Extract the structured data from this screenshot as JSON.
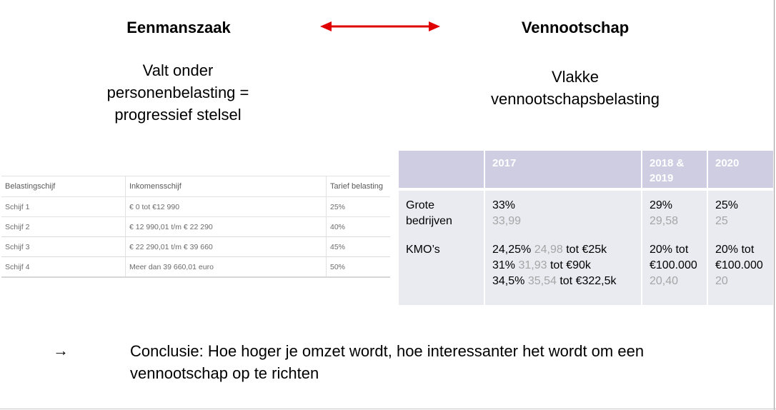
{
  "left": {
    "heading": "Eenmanszaak",
    "description_lines": [
      "Valt onder",
      "personenbelasting =",
      "progressief stelsel"
    ]
  },
  "right": {
    "heading": "Vennootschap",
    "description_lines": [
      "Vlakke",
      "vennootschapsbelasting"
    ]
  },
  "arrow": {
    "color": "#e00000"
  },
  "tax_table": {
    "headers": [
      "Belastingschijf",
      "Inkomensschijf",
      "Tarief belasting"
    ],
    "rows": [
      [
        "Schijf 1",
        "€ 0 tot €12 990",
        "25%"
      ],
      [
        "Schijf 2",
        "€ 12 990,01 t/m € 22 290",
        "40%"
      ],
      [
        "Schijf 3",
        "€ 22 290,01 t/m € 39 660",
        "45%"
      ],
      [
        "Schijf 4",
        "Meer dan 39 660,01 euro",
        "50%"
      ]
    ]
  },
  "vpb_table": {
    "headers": [
      "",
      "2017",
      "2018 &",
      "2019",
      "2020"
    ],
    "grote": {
      "label_lines": [
        "Grote",
        "bedrijven"
      ],
      "y2017": "33%",
      "y2017_grey": "33,99",
      "y2018": "29%",
      "y2018_grey": "29,58",
      "y2020": "25%",
      "y2020_grey": "25"
    },
    "kmo": {
      "label": "KMO’s",
      "line1": {
        "rate": "24,25%",
        "grey": "24,98",
        "rest": "tot €25k"
      },
      "line2": {
        "rate": "31%",
        "grey": "31,93",
        "rest": "tot €90k"
      },
      "line3": {
        "rate": "34,5%",
        "grey": "35,54",
        "rest": "tot €322,5k"
      },
      "y2018_line1": "20% tot",
      "y2018_line2": "€100.000",
      "y2018_grey": "20,40",
      "y2020_line1": "20% tot",
      "y2020_line2": "€100.000",
      "y2020_grey": "20"
    },
    "header_color": "#cfcde1",
    "body_color": "#eaeaf1"
  },
  "conclusion": {
    "arrow": "→",
    "text": "Conclusie: Hoe hoger je omzet wordt, hoe interessanter het wordt om een vennootschap op te richten"
  }
}
